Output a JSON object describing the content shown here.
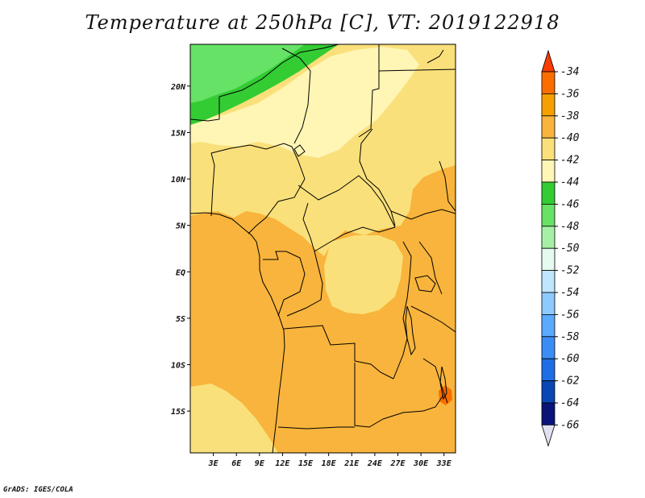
{
  "title": "Temperature at 250hPa [C], VT: 2019122918",
  "credit": "GrADS: IGES/COLA",
  "map": {
    "projection": "latlon",
    "lon_range": [
      0,
      34.5
    ],
    "lat_range": [
      -19.5,
      24.5
    ],
    "lat_ticks": [
      {
        "value": 20,
        "label": "20N"
      },
      {
        "value": 15,
        "label": "15N"
      },
      {
        "value": 10,
        "label": "10N"
      },
      {
        "value": 5,
        "label": "5N"
      },
      {
        "value": 0,
        "label": "EQ"
      },
      {
        "value": -5,
        "label": "5S"
      },
      {
        "value": -10,
        "label": "10S"
      },
      {
        "value": -15,
        "label": "15S"
      }
    ],
    "lon_ticks": [
      {
        "value": 3,
        "label": "3E"
      },
      {
        "value": 6,
        "label": "6E"
      },
      {
        "value": 9,
        "label": "9E"
      },
      {
        "value": 12,
        "label": "12E"
      },
      {
        "value": 15,
        "label": "15E"
      },
      {
        "value": 18,
        "label": "18E"
      },
      {
        "value": 21,
        "label": "21E"
      },
      {
        "value": 24,
        "label": "24E"
      },
      {
        "value": 27,
        "label": "27E"
      },
      {
        "value": 30,
        "label": "30E"
      },
      {
        "value": 33,
        "label": "33E"
      }
    ]
  },
  "colorbar": {
    "levels": [
      "-34",
      "-36",
      "-38",
      "-40",
      "-42",
      "-44",
      "-46",
      "-48",
      "-50",
      "-52",
      "-54",
      "-56",
      "-58",
      "-60",
      "-62",
      "-64",
      "-66"
    ],
    "colors": [
      "#fa3c00",
      "#fa6e00",
      "#f5a000",
      "#f8b43c",
      "#fae07a",
      "#fff5b4",
      "#33cc33",
      "#66e266",
      "#a6f0a6",
      "#e6fbf0",
      "#bfe5ff",
      "#8ccaff",
      "#5aaaff",
      "#3c8cf5",
      "#1e6ee6",
      "#0a46b4",
      "#0a1478"
    ],
    "top_color": "#fa3c00",
    "bottom_color": "#e0e0f0"
  },
  "field_colors": {
    "t38": "#f8b43c",
    "t40": "#fae07a",
    "t42": "#fff5b4",
    "t44": "#33cc33",
    "t46": "#66e266",
    "t36": "#fa6e00",
    "border": "#000000"
  }
}
